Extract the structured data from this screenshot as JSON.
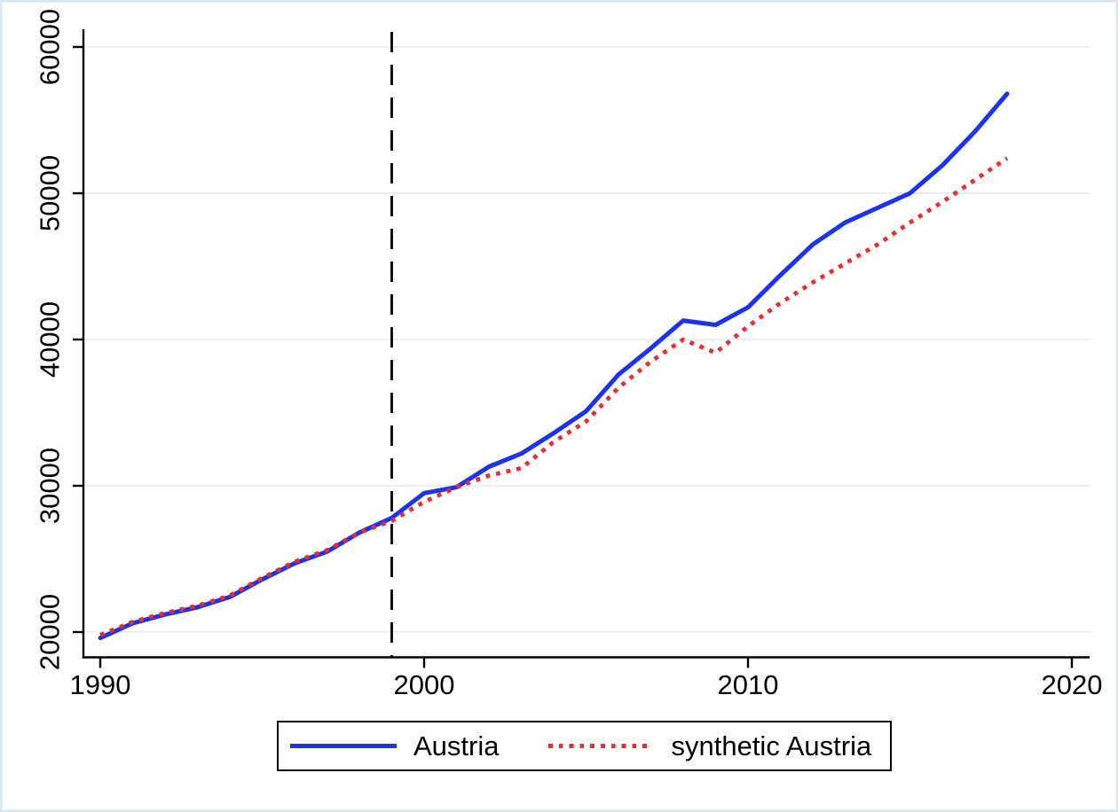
{
  "figure": {
    "background": "#ffffff",
    "border_color": "#d8e4ee",
    "gridline_color": "#e6eff5",
    "axis_color": "#000000"
  },
  "chart_data": {
    "type": "line",
    "title": "",
    "xlabel": "",
    "ylabel": "",
    "xlim": [
      1990,
      2020
    ],
    "ylim": [
      20000,
      60000
    ],
    "grid": "horizontal",
    "legend_position": "bottom",
    "x_ticks": [
      1990,
      2000,
      2010,
      2020
    ],
    "y_ticks": [
      20000,
      30000,
      40000,
      50000,
      60000
    ],
    "treatment_line": {
      "x": 1999,
      "style": "dashed",
      "color": "#000000"
    },
    "x": [
      1990,
      1991,
      1992,
      1993,
      1994,
      1995,
      1996,
      1997,
      1998,
      1999,
      2000,
      2001,
      2002,
      2003,
      2004,
      2005,
      2006,
      2007,
      2008,
      2009,
      2010,
      2011,
      2012,
      2013,
      2014,
      2015,
      2016,
      2017,
      2018
    ],
    "series": [
      {
        "name": "Austria",
        "color": "#1b33ee",
        "style": "solid",
        "values": [
          19600,
          20600,
          21200,
          21700,
          22400,
          23600,
          24700,
          25500,
          26800,
          27800,
          29500,
          29900,
          31300,
          32200,
          33600,
          35100,
          37600,
          39400,
          41300,
          41000,
          42200,
          44400,
          46500,
          48000,
          49000,
          50000,
          51900,
          54200,
          56800
        ]
      },
      {
        "name": "synthetic Austria",
        "color": "#ee2b2b",
        "style": "dotted",
        "values": [
          19800,
          20700,
          21300,
          21800,
          22500,
          23700,
          24800,
          25600,
          26800,
          27600,
          28900,
          29900,
          30700,
          31200,
          33000,
          34400,
          36700,
          38500,
          40000,
          39100,
          40900,
          42500,
          43900,
          45200,
          46500,
          48000,
          49400,
          50900,
          52400
        ]
      }
    ]
  },
  "legend": {
    "items": [
      {
        "label": "Austria"
      },
      {
        "label": "synthetic Austria"
      }
    ]
  }
}
